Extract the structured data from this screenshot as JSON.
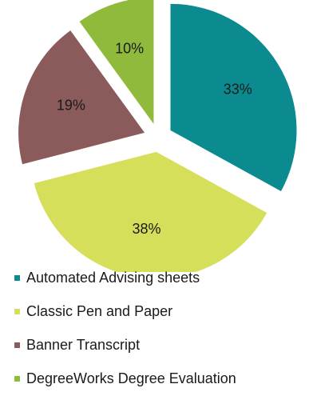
{
  "chart_data": {
    "type": "pie",
    "title": "",
    "slices": [
      {
        "label": "Automated Advising sheets",
        "value": 33,
        "display": "33%",
        "color": "#0b8a8f"
      },
      {
        "label": "Classic Pen and Paper",
        "value": 38,
        "display": "38%",
        "color": "#d6df5a"
      },
      {
        "label": "Banner Transcript",
        "value": 19,
        "display": "19%",
        "color": "#8b5b5b"
      },
      {
        "label": "DegreeWorks Degree Evaluation",
        "value": 10,
        "display": "10%",
        "color": "#8fba3c"
      }
    ],
    "legend_position": "bottom"
  }
}
